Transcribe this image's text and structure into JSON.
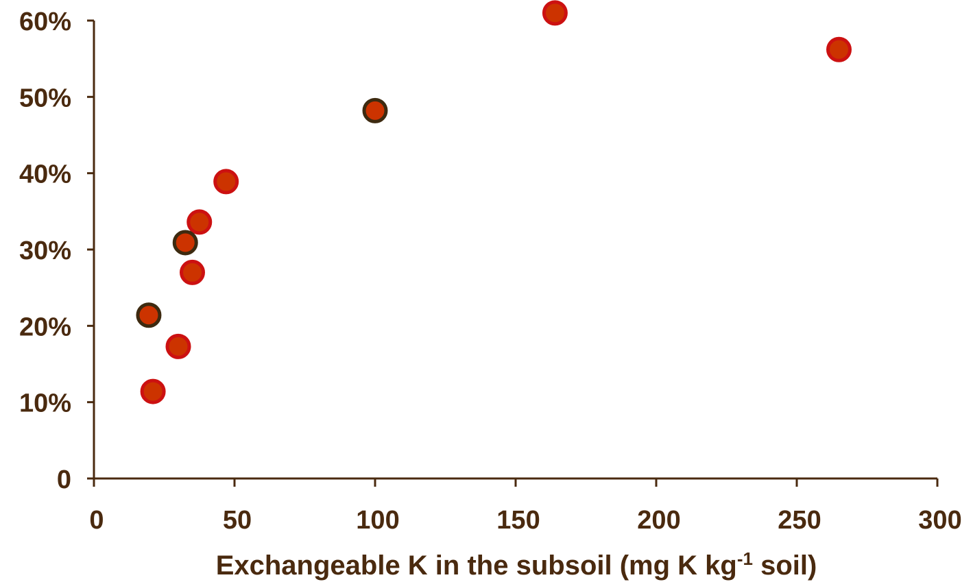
{
  "chart_data": {
    "type": "scatter",
    "title": "",
    "xlabel": {
      "before": "Exchangeable K in the subsoil (mg K kg",
      "superscript": "-1",
      "after": " soil)"
    },
    "ylabel": "",
    "xlim": [
      0,
      300
    ],
    "ylim": [
      0,
      0.6
    ],
    "x_ticks": [
      {
        "value": 0,
        "label": "0"
      },
      {
        "value": 50,
        "label": "50"
      },
      {
        "value": 100,
        "label": "100"
      },
      {
        "value": 150,
        "label": "150"
      },
      {
        "value": 200,
        "label": "200"
      },
      {
        "value": 250,
        "label": "250"
      },
      {
        "value": 300,
        "label": "300"
      }
    ],
    "y_ticks": [
      {
        "value": 0,
        "label": "0"
      },
      {
        "value": 0.1,
        "label": "10%"
      },
      {
        "value": 0.2,
        "label": "20%"
      },
      {
        "value": 0.3,
        "label": "30%"
      },
      {
        "value": 0.4,
        "label": "40%"
      },
      {
        "value": 0.5,
        "label": "50%"
      },
      {
        "value": 0.6,
        "label": "60%"
      }
    ],
    "grid": false,
    "legend": "none",
    "colors": {
      "axis": "#4a2a0f",
      "text": "#4a2a0f",
      "marker_fill": "#cc3300",
      "outline_red": "#cc1111",
      "outline_dark": "#3d2a10"
    },
    "series": [
      {
        "outline": "red",
        "points": [
          {
            "x": 21,
            "y": 0.114
          },
          {
            "x": 30,
            "y": 0.173
          },
          {
            "x": 35,
            "y": 0.27
          },
          {
            "x": 37.5,
            "y": 0.336
          },
          {
            "x": 47,
            "y": 0.389
          },
          {
            "x": 164,
            "y": 0.61
          },
          {
            "x": 265,
            "y": 0.562
          }
        ]
      },
      {
        "outline": "dark",
        "points": [
          {
            "x": 19.5,
            "y": 0.214
          },
          {
            "x": 32.5,
            "y": 0.309
          },
          {
            "x": 100,
            "y": 0.482
          }
        ]
      }
    ]
  }
}
